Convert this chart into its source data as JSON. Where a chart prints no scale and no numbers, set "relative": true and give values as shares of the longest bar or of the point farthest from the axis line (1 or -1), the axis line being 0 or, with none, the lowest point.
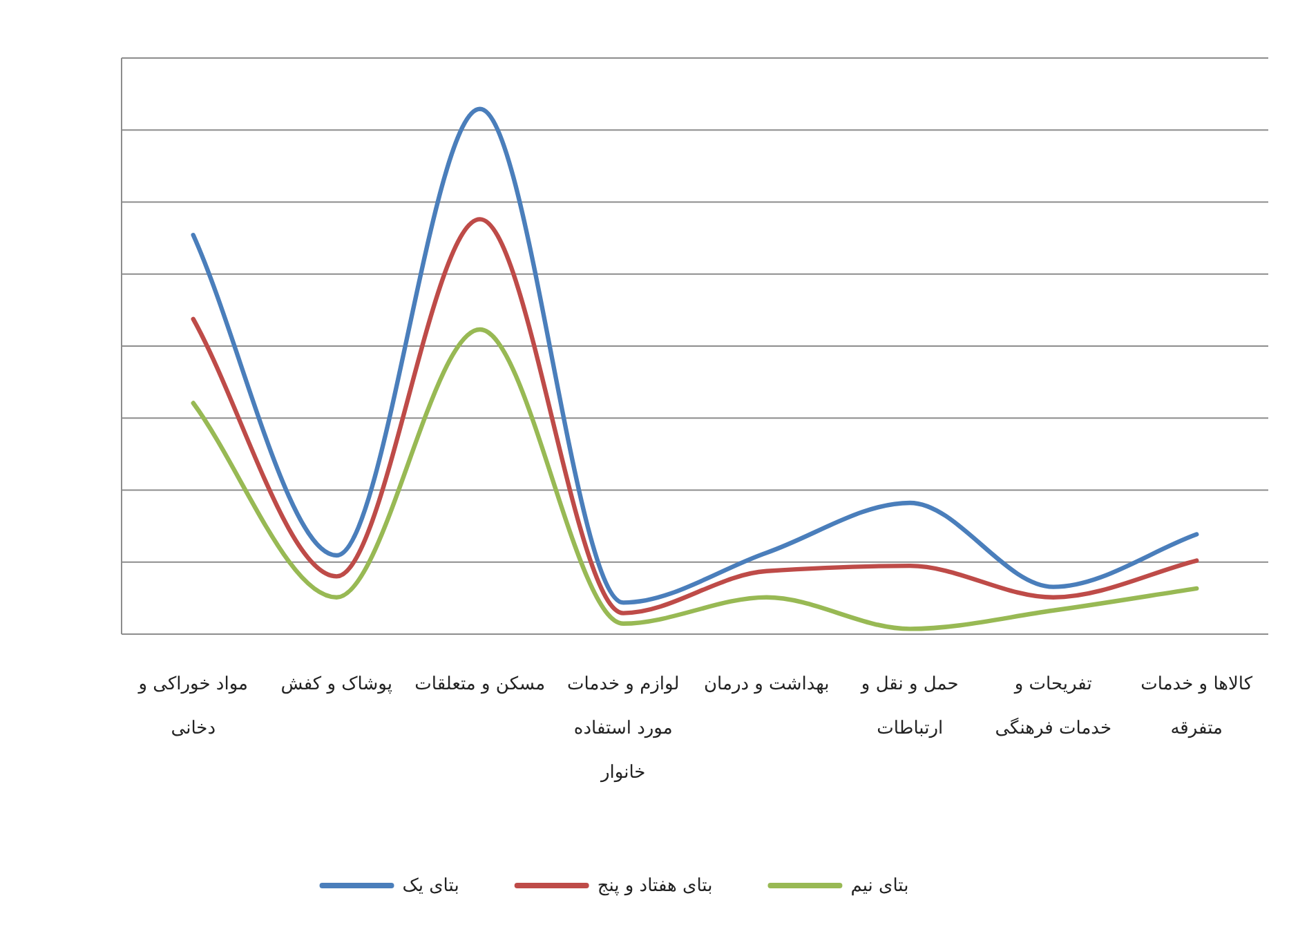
{
  "chart_data": {
    "type": "line",
    "relative": true,
    "grid": "y",
    "legend": "bottom",
    "marker": "none",
    "line_style": "solid",
    "categories": [
      "مواد خوراکی و دخانی",
      "پوشاک و کفش",
      "مسکن و متعلقات",
      "لوازم و خدمات مورد استفاده خانوار",
      "بهداشت و درمان",
      "حمل و نقل و ارتباطات",
      "تفریحات و خدمات فرهنگی",
      "کالاها و خدمات متفرقه"
    ],
    "series": [
      {
        "name": "بتای یک",
        "color": "#4a7ebb",
        "values": [
          0.76,
          0.15,
          1,
          0.06,
          0.155,
          0.25,
          0.09,
          0.19
        ]
      },
      {
        "name": "بتای هفتاد و پنج",
        "color": "#be4b48",
        "values": [
          0.6,
          0.11,
          0.79,
          0.04,
          0.12,
          0.13,
          0.07,
          0.14
        ]
      },
      {
        "name": "بتای نیم",
        "color": "#98b954",
        "values": [
          0.44,
          0.07,
          0.58,
          0.02,
          0.07,
          0.01,
          0.045,
          0.087
        ]
      }
    ]
  }
}
